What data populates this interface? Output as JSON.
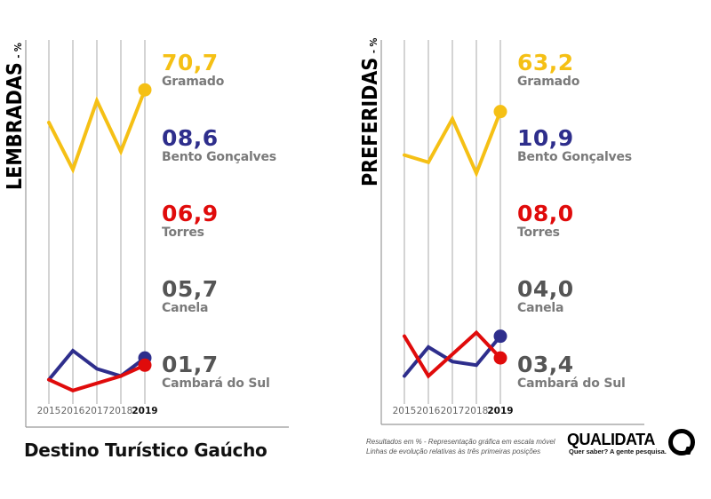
{
  "chart_data": [
    {
      "type": "line",
      "title": "LEMBRADAS",
      "ylabel_unit": "- %",
      "x": [
        "2015",
        "2016",
        "2017",
        "2018",
        "2019"
      ],
      "highlight_x": "2019",
      "scale_note": "relative (escala móvel)",
      "series": [
        {
          "name": "Gramado",
          "color": "#f5c015",
          "value_2019": "70,7",
          "relative_path": [
            0.76,
            0.63,
            0.82,
            0.68,
            0.85
          ]
        },
        {
          "name": "Bento Gonçalves",
          "color": "#2e2e8c",
          "value_2019": "08,6",
          "relative_path": [
            0.05,
            0.13,
            0.08,
            0.06,
            0.11
          ]
        },
        {
          "name": "Torres",
          "color": "#e00b0b",
          "value_2019": "06,9",
          "relative_path": [
            0.05,
            0.02,
            0.04,
            0.06,
            0.09
          ]
        }
      ],
      "entries": [
        {
          "value": "70,7",
          "name": "Gramado",
          "color": "#f5c015"
        },
        {
          "value": "08,6",
          "name": "Bento Gonçalves",
          "color": "#2e2e8c"
        },
        {
          "value": "06,9",
          "name": "Torres",
          "color": "#e00b0b"
        },
        {
          "value": "05,7",
          "name": "Canela",
          "color": "#555555"
        },
        {
          "value": "01,7",
          "name": "Cambará do Sul",
          "color": "#555555"
        }
      ]
    },
    {
      "type": "line",
      "title": "PREFERIDAS",
      "ylabel_unit": "- %",
      "x": [
        "2015",
        "2016",
        "2017",
        "2018",
        "2019"
      ],
      "highlight_x": "2019",
      "scale_note": "relative (escala móvel)",
      "series": [
        {
          "name": "Gramado",
          "color": "#f5c015",
          "value_2019": "63,2",
          "relative_path": [
            0.67,
            0.65,
            0.77,
            0.62,
            0.79
          ]
        },
        {
          "name": "Bento Gonçalves",
          "color": "#2e2e8c",
          "value_2019": "10,9",
          "relative_path": [
            0.06,
            0.14,
            0.1,
            0.09,
            0.17
          ]
        },
        {
          "name": "Torres",
          "color": "#e00b0b",
          "value_2019": "08,0",
          "relative_path": [
            0.17,
            0.06,
            0.12,
            0.18,
            0.11
          ]
        }
      ],
      "entries": [
        {
          "value": "63,2",
          "name": "Gramado",
          "color": "#f5c015"
        },
        {
          "value": "10,9",
          "name": "Bento Gonçalves",
          "color": "#2e2e8c"
        },
        {
          "value": "08,0",
          "name": "Torres",
          "color": "#e00b0b"
        },
        {
          "value": "04,0",
          "name": "Canela",
          "color": "#555555"
        },
        {
          "value": "03,4",
          "name": "Cambará do Sul",
          "color": "#555555"
        }
      ]
    }
  ],
  "footer": {
    "title": "Destino Turístico Gaúcho",
    "note_line1": "Resultados em % - Representação gráfica em escala móvel",
    "note_line2": "Linhas de evolução relativas às três primeiras posições",
    "logo_text": "QUALIDATA",
    "logo_tagline": "Quer saber? A gente pesquisa."
  }
}
